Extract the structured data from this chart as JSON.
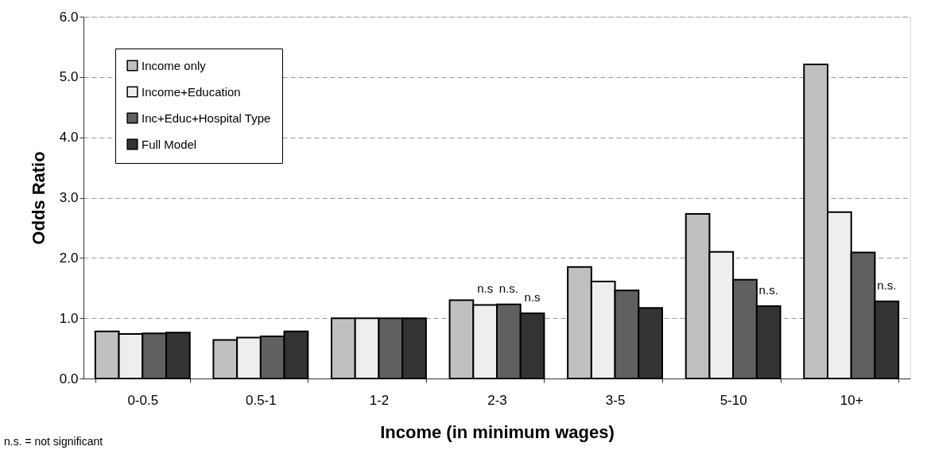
{
  "chart_data": {
    "type": "bar",
    "xlabel": "Income (in minimum wages)",
    "ylabel": "Odds Ratio",
    "categories": [
      "0-0.5",
      "0.5-1",
      "1-2",
      "2-3",
      "3-5",
      "5-10",
      "10+"
    ],
    "series": [
      {
        "name": "Income only",
        "color": "#c0c0c0",
        "values": [
          0.78,
          0.64,
          1.0,
          1.3,
          1.85,
          2.73,
          5.21
        ]
      },
      {
        "name": "Income+Education",
        "color": "#eeeeee",
        "values": [
          0.74,
          0.68,
          1.0,
          1.22,
          1.61,
          2.1,
          2.76
        ]
      },
      {
        "name": "Inc+Educ+Hospital Type",
        "color": "#606060",
        "values": [
          0.75,
          0.7,
          1.0,
          1.23,
          1.46,
          1.64,
          2.09
        ]
      },
      {
        "name": "Full Model",
        "color": "#333333",
        "values": [
          0.76,
          0.78,
          1.0,
          1.08,
          1.17,
          1.2,
          1.28
        ]
      }
    ],
    "ylim": [
      0,
      6
    ],
    "yticks": [
      {
        "value": 0,
        "label": "0.0"
      },
      {
        "value": 1,
        "label": "1.0"
      },
      {
        "value": 2,
        "label": "2.0"
      },
      {
        "value": 3,
        "label": "3.0"
      },
      {
        "value": 4,
        "label": "4.0"
      },
      {
        "value": 5,
        "label": "5.0"
      },
      {
        "value": 6,
        "label": "6.0"
      }
    ],
    "grid": "y",
    "legend": "top left",
    "annotations": [
      {
        "text": "n.s",
        "x": "2-3",
        "y": 1.22
      },
      {
        "text": "n.s.",
        "x": "2-3",
        "y": 1.23
      },
      {
        "text": "n.s",
        "x": "2-3",
        "y": 1.08
      },
      {
        "text": "n.s.",
        "x": "5-10",
        "y": 1.2
      },
      {
        "text": "n.s.",
        "x": "10+",
        "y": 1.28
      },
      "n.s. = not significant"
    ]
  }
}
